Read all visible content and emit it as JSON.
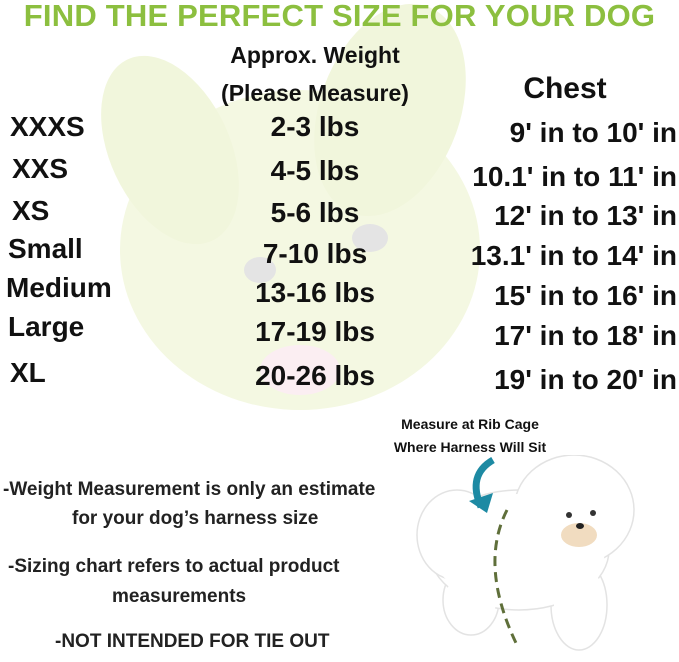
{
  "title": "FIND THE PERFECT SIZE FOR YOUR DOG",
  "colors": {
    "title": "#8cbf3f",
    "arrow": "#1d8aa3",
    "dashed_line": "#5f6f3a",
    "mascot": "#f2f7dc"
  },
  "headers": {
    "weight_line1": "Approx. Weight",
    "weight_line2": "(Please Measure)",
    "chest": "Chest"
  },
  "rows": [
    {
      "size": "XXXS",
      "weight": "2-3 lbs",
      "chest": "9' in to 10' in"
    },
    {
      "size": "XXS",
      "weight": "4-5 lbs",
      "chest": "10.1' in to 11' in"
    },
    {
      "size": "XS",
      "weight": "5-6 lbs",
      "chest": "12' in to 13' in"
    },
    {
      "size": "Small",
      "weight": "7-10 lbs",
      "chest": "13.1' in to 14' in"
    },
    {
      "size": "Medium",
      "weight": "13-16 lbs",
      "chest": "15' in to 16' in"
    },
    {
      "size": "Large",
      "weight": "17-19 lbs",
      "chest": "17' in to 18' in"
    },
    {
      "size": "XL",
      "weight": "20-26 lbs",
      "chest": "19' in to 20' in"
    }
  ],
  "caption": {
    "line1": "Measure at Rib Cage",
    "line2": "Where Harness Will Sit"
  },
  "notes": {
    "n1_line1": "-Weight Measurement is only an estimate",
    "n1_line2": "for your dog’s harness size",
    "n2_line1": "-Sizing chart refers to actual product",
    "n2_line2": "measurements",
    "n3": "-NOT INTENDED FOR TIE OUT"
  }
}
